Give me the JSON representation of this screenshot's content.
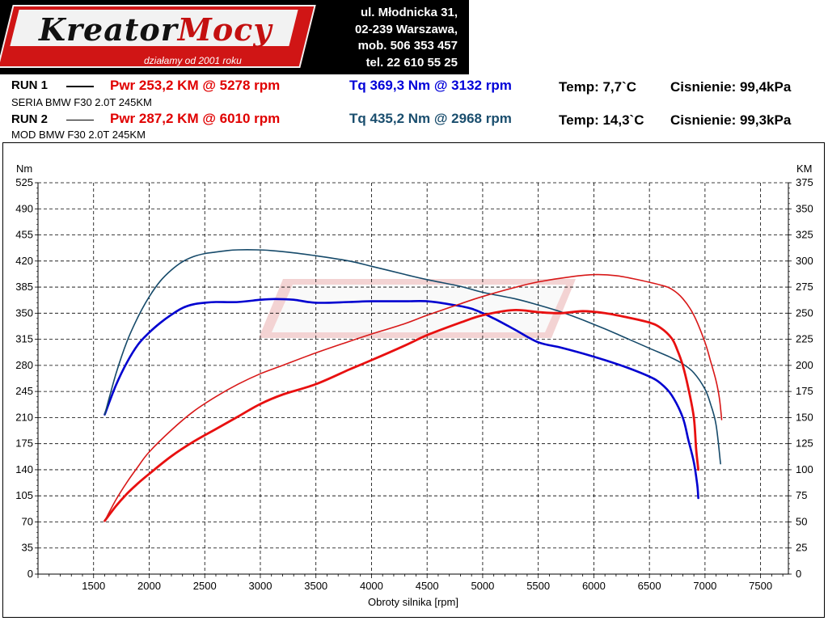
{
  "header": {
    "logo_text_1": "Kreator",
    "logo_text_2": "Mocy",
    "slogan": "działamy od 2001 roku",
    "contact": {
      "address_1": "ul. Młodnicka 31,",
      "address_2": "02-239  Warszawa,",
      "mobile": "mob.  506 353 457",
      "phone": "tel.  22 610 55 25"
    }
  },
  "runs": [
    {
      "name": "RUN 1",
      "model": "SERIA BMW F30 2.0T 245KM",
      "pwr": "Pwr  253,2 KM @ 5278 rpm",
      "tq": "Tq 369,3 Nm @ 3132 rpm",
      "temp": "Temp: 7,7`C",
      "pressure": "Cisnienie: 99,4kPa"
    },
    {
      "name": "RUN 2",
      "model": "MOD BMW F30 2.0T 245KM",
      "pwr": "Pwr  287,2 KM @ 6010 rpm",
      "tq": "Tq 435,2 Nm @ 2968 rpm",
      "temp": "Temp: 14,3`C",
      "pressure": "Cisnienie: 99,3kPa"
    }
  ],
  "colors": {
    "run1_power": "#e81010",
    "run2_power": "#d81818",
    "run1_torque": "#0000d0",
    "run2_torque": "#164a6a",
    "grid": "#000000"
  },
  "chart_data": {
    "type": "line",
    "xlabel": "Obroty silnika [rpm]",
    "ylabel_left": "Nm",
    "ylabel_right": "KM",
    "x_ticks": [
      1500,
      2000,
      2500,
      3000,
      3500,
      4000,
      4500,
      5000,
      5500,
      6000,
      6500,
      7000,
      7500
    ],
    "y_left_ticks": [
      0,
      35,
      70,
      105,
      140,
      175,
      210,
      245,
      280,
      315,
      350,
      385,
      420,
      455,
      490,
      525
    ],
    "y_right_ticks": [
      0,
      25,
      50,
      75,
      100,
      125,
      150,
      175,
      200,
      225,
      250,
      275,
      300,
      325,
      350,
      375
    ],
    "xlim": [
      1000,
      7750
    ],
    "ylim_left": [
      0,
      525
    ],
    "ylim_right": [
      0,
      375
    ],
    "grid": true,
    "series": [
      {
        "name": "RUN 1",
        "quantity": "torque",
        "axis": "left",
        "x": [
          1600,
          1700,
          1800,
          1900,
          2000,
          2100,
          2200,
          2300,
          2400,
          2500,
          2600,
          2800,
          3000,
          3132,
          3300,
          3500,
          3800,
          4000,
          4300,
          4500,
          4700,
          4900,
          5100,
          5300,
          5500,
          5700,
          5900,
          6100,
          6300,
          6500,
          6600,
          6700,
          6800,
          6850,
          6900,
          6930,
          6940
        ],
        "y": [
          214,
          253,
          284,
          308,
          324,
          337,
          348,
          357,
          362,
          364,
          365,
          365,
          368,
          369,
          368,
          364,
          365,
          366,
          366,
          366,
          362,
          356,
          343,
          327,
          311,
          304,
          296,
          287,
          277,
          265,
          256,
          240,
          210,
          180,
          150,
          120,
          102
        ]
      },
      {
        "name": "RUN 2",
        "quantity": "torque",
        "axis": "left",
        "x": [
          1600,
          1700,
          1800,
          1900,
          2000,
          2100,
          2200,
          2300,
          2400,
          2500,
          2600,
          2700,
          2800,
          2968,
          3100,
          3300,
          3500,
          3800,
          4000,
          4300,
          4500,
          4800,
          5000,
          5300,
          5500,
          5700,
          5900,
          6100,
          6300,
          6500,
          6700,
          6800,
          6900,
          7000,
          7050,
          7100,
          7140
        ],
        "y": [
          214,
          268,
          312,
          345,
          372,
          393,
          408,
          419,
          426,
          430,
          432,
          434,
          435,
          435,
          434,
          431,
          427,
          420,
          413,
          402,
          395,
          386,
          378,
          369,
          361,
          352,
          341,
          329,
          316,
          303,
          290,
          282,
          270,
          248,
          228,
          200,
          148
        ]
      },
      {
        "name": "RUN 1",
        "quantity": "power",
        "axis": "right",
        "x": [
          1600,
          1700,
          1800,
          1900,
          2000,
          2200,
          2400,
          2600,
          2800,
          3000,
          3200,
          3500,
          3800,
          4000,
          4300,
          4500,
          4800,
          5000,
          5278,
          5500,
          5700,
          5900,
          6100,
          6300,
          6500,
          6600,
          6700,
          6750,
          6800,
          6850,
          6900,
          6920,
          6940
        ],
        "y": [
          51,
          65,
          77,
          87,
          96,
          113,
          127,
          139,
          151,
          163,
          172,
          182,
          196,
          205,
          219,
          229,
          241,
          248,
          253,
          251,
          250,
          252,
          250,
          246,
          241,
          236,
          226,
          215,
          200,
          178,
          150,
          120,
          100
        ]
      },
      {
        "name": "RUN 2",
        "quantity": "power",
        "axis": "right",
        "x": [
          1600,
          1700,
          1800,
          1900,
          2000,
          2200,
          2400,
          2600,
          2800,
          3000,
          3200,
          3500,
          3800,
          4000,
          4300,
          4500,
          4800,
          5000,
          5300,
          5500,
          5800,
          6010,
          6200,
          6400,
          6600,
          6700,
          6800,
          6900,
          7000,
          7050,
          7100,
          7130,
          7150
        ],
        "y": [
          51,
          71,
          88,
          103,
          117,
          138,
          156,
          170,
          182,
          192,
          200,
          212,
          223,
          230,
          240,
          248,
          259,
          266,
          275,
          280,
          285,
          287,
          286,
          282,
          277,
          273,
          264,
          248,
          222,
          204,
          185,
          168,
          148
        ]
      }
    ]
  }
}
